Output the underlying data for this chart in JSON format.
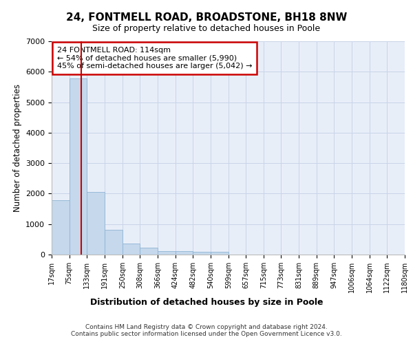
{
  "title1": "24, FONTMELL ROAD, BROADSTONE, BH18 8NW",
  "title2": "Size of property relative to detached houses in Poole",
  "xlabel": "Distribution of detached houses by size in Poole",
  "ylabel": "Number of detached properties",
  "footer1": "Contains HM Land Registry data © Crown copyright and database right 2024.",
  "footer2": "Contains public sector information licensed under the Open Government Licence v3.0.",
  "annotation_title": "24 FONTMELL ROAD: 114sqm",
  "annotation_line1": "← 54% of detached houses are smaller (5,990)",
  "annotation_line2": "45% of semi-detached houses are larger (5,042) →",
  "bar_edges": [
    17,
    75,
    133,
    191,
    250,
    308,
    366,
    424,
    482,
    540,
    599,
    657,
    715,
    773,
    831,
    889,
    947,
    1006,
    1064,
    1122,
    1180
  ],
  "bar_heights": [
    1780,
    5780,
    2060,
    820,
    360,
    230,
    110,
    110,
    95,
    80,
    0,
    0,
    0,
    0,
    0,
    0,
    0,
    0,
    0,
    0
  ],
  "bar_color": "#c5d8ec",
  "bar_edge_color": "#8fb4d4",
  "grid_color": "#c8d4e8",
  "background_color": "#e8eef8",
  "red_line_x": 114,
  "ylim": [
    0,
    7000
  ],
  "xlim": [
    17,
    1180
  ],
  "annotation_box_color": "#ffffff",
  "annotation_box_edge": "#cc0000",
  "red_line_color": "#cc0000",
  "title1_fontsize": 11,
  "title2_fontsize": 9
}
